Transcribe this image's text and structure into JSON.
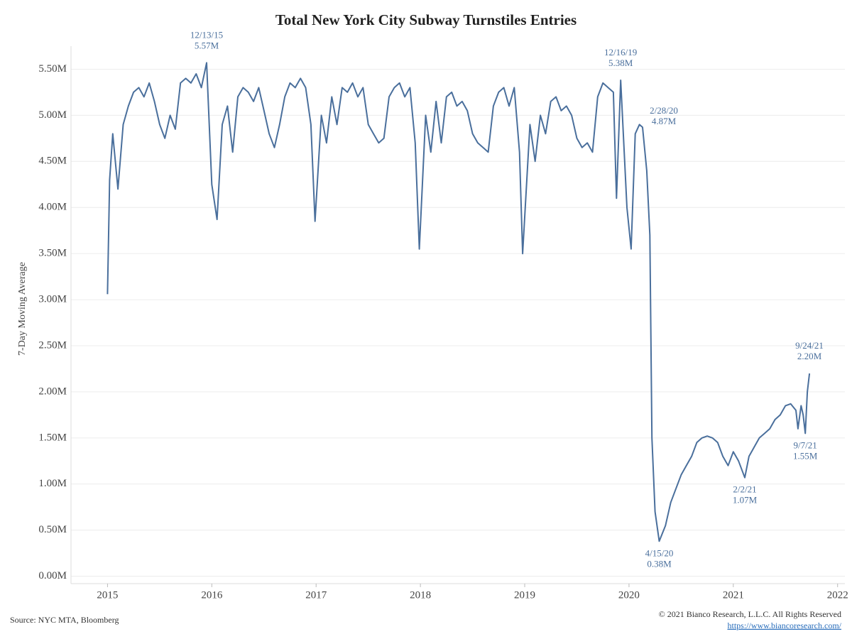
{
  "chart_data": {
    "type": "line",
    "title": "Total New York City Subway Turnstiles Entries",
    "y_label": "7-Day Moving Average",
    "source": "Source: NYC MTA, Bloomberg",
    "copyright": "© 2021 Bianco Research, L.L.C. All Rights Reserved",
    "url": "https://www.biancoresearch.com/",
    "color": "#4a6f9c",
    "grid": true,
    "xlim": [
      2014.65,
      2022.07
    ],
    "ylim": [
      -0.08,
      5.75
    ],
    "xticks": [
      2015,
      2016,
      2017,
      2018,
      2019,
      2020,
      2021,
      2022
    ],
    "yticks": [
      {
        "value": 0,
        "label": "0.00M"
      },
      {
        "value": 0.5,
        "label": "0.50M"
      },
      {
        "value": 1,
        "label": "1.00M"
      },
      {
        "value": 1.5,
        "label": "1.50M"
      },
      {
        "value": 2,
        "label": "2.00M"
      },
      {
        "value": 2.5,
        "label": "2.50M"
      },
      {
        "value": 3,
        "label": "3.00M"
      },
      {
        "value": 3.5,
        "label": "3.50M"
      },
      {
        "value": 4,
        "label": "4.00M"
      },
      {
        "value": 4.5,
        "label": "4.50M"
      },
      {
        "value": 5,
        "label": "5.00M"
      },
      {
        "value": 5.5,
        "label": "5.50M"
      }
    ],
    "x": [
      2015.0,
      2015.02,
      2015.05,
      2015.1,
      2015.15,
      2015.2,
      2015.25,
      2015.3,
      2015.35,
      2015.4,
      2015.45,
      2015.5,
      2015.55,
      2015.6,
      2015.65,
      2015.7,
      2015.75,
      2015.8,
      2015.85,
      2015.9,
      2015.95,
      2016.0,
      2016.05,
      2016.1,
      2016.15,
      2016.2,
      2016.25,
      2016.3,
      2016.35,
      2016.4,
      2016.45,
      2016.5,
      2016.55,
      2016.6,
      2016.65,
      2016.7,
      2016.75,
      2016.8,
      2016.85,
      2016.9,
      2016.95,
      2016.99,
      2017.05,
      2017.1,
      2017.15,
      2017.2,
      2017.25,
      2017.3,
      2017.35,
      2017.4,
      2017.45,
      2017.5,
      2017.55,
      2017.6,
      2017.65,
      2017.7,
      2017.75,
      2017.8,
      2017.85,
      2017.9,
      2017.95,
      2017.99,
      2018.05,
      2018.1,
      2018.15,
      2018.2,
      2018.25,
      2018.3,
      2018.35,
      2018.4,
      2018.45,
      2018.5,
      2018.55,
      2018.6,
      2018.65,
      2018.7,
      2018.75,
      2018.8,
      2018.85,
      2018.9,
      2018.95,
      2018.98,
      2019.05,
      2019.1,
      2019.15,
      2019.2,
      2019.25,
      2019.3,
      2019.35,
      2019.4,
      2019.45,
      2019.5,
      2019.55,
      2019.6,
      2019.65,
      2019.7,
      2019.75,
      2019.8,
      2019.85,
      2019.88,
      2019.92,
      2019.98,
      2020.02,
      2020.06,
      2020.1,
      2020.13,
      2020.17,
      2020.2,
      2020.22,
      2020.25,
      2020.29,
      2020.35,
      2020.4,
      2020.45,
      2020.5,
      2020.55,
      2020.6,
      2020.65,
      2020.7,
      2020.75,
      2020.8,
      2020.85,
      2020.9,
      2020.95,
      2021.0,
      2021.05,
      2021.11,
      2021.15,
      2021.2,
      2021.25,
      2021.3,
      2021.35,
      2021.4,
      2021.45,
      2021.5,
      2021.55,
      2021.6,
      2021.62,
      2021.65,
      2021.67,
      2021.69,
      2021.71,
      2021.73
    ],
    "values": [
      3.06,
      4.3,
      4.8,
      4.2,
      4.9,
      5.1,
      5.25,
      5.3,
      5.2,
      5.35,
      5.15,
      4.9,
      4.75,
      5.0,
      4.85,
      5.35,
      5.4,
      5.35,
      5.45,
      5.3,
      5.57,
      4.25,
      3.87,
      4.9,
      5.1,
      4.6,
      5.2,
      5.3,
      5.25,
      5.15,
      5.3,
      5.05,
      4.8,
      4.65,
      4.9,
      5.2,
      5.35,
      5.3,
      5.4,
      5.3,
      4.9,
      3.85,
      5.0,
      4.7,
      5.2,
      4.9,
      5.3,
      5.25,
      5.35,
      5.2,
      5.3,
      4.9,
      4.8,
      4.7,
      4.75,
      5.2,
      5.3,
      5.35,
      5.2,
      5.3,
      4.7,
      3.55,
      5.0,
      4.6,
      5.15,
      4.7,
      5.2,
      5.25,
      5.1,
      5.15,
      5.05,
      4.8,
      4.7,
      4.65,
      4.6,
      5.1,
      5.25,
      5.3,
      5.1,
      5.3,
      4.6,
      3.5,
      4.9,
      4.5,
      5.0,
      4.8,
      5.15,
      5.2,
      5.05,
      5.1,
      5.0,
      4.75,
      4.65,
      4.7,
      4.6,
      5.2,
      5.35,
      5.3,
      5.25,
      4.1,
      5.38,
      4.0,
      3.55,
      4.8,
      4.9,
      4.87,
      4.4,
      3.7,
      1.5,
      0.7,
      0.38,
      0.55,
      0.8,
      0.95,
      1.1,
      1.2,
      1.3,
      1.45,
      1.5,
      1.52,
      1.5,
      1.45,
      1.3,
      1.2,
      1.35,
      1.25,
      1.07,
      1.3,
      1.4,
      1.5,
      1.55,
      1.6,
      1.7,
      1.75,
      1.85,
      1.87,
      1.8,
      1.6,
      1.85,
      1.75,
      1.55,
      2.0,
      2.2
    ],
    "annotations": [
      {
        "x": 2015.95,
        "value": 5.57,
        "date": "12/13/15",
        "value_label": "5.57M"
      },
      {
        "x": 2019.92,
        "value": 5.38,
        "date": "12/16/19",
        "value_label": "5.38M"
      },
      {
        "x": 2020.13,
        "value": 4.87,
        "date": "2/28/20",
        "value_label": "4.87M"
      },
      {
        "x": 2020.29,
        "value": 0.38,
        "date": "4/15/20",
        "value_label": "0.38M"
      },
      {
        "x": 2021.11,
        "value": 1.07,
        "date": "2/2/21",
        "value_label": "1.07M"
      },
      {
        "x": 2021.69,
        "value": 1.55,
        "date": "9/7/21",
        "value_label": "1.55M"
      },
      {
        "x": 2021.73,
        "value": 2.2,
        "date": "9/24/21",
        "value_label": "2.20M"
      }
    ]
  }
}
